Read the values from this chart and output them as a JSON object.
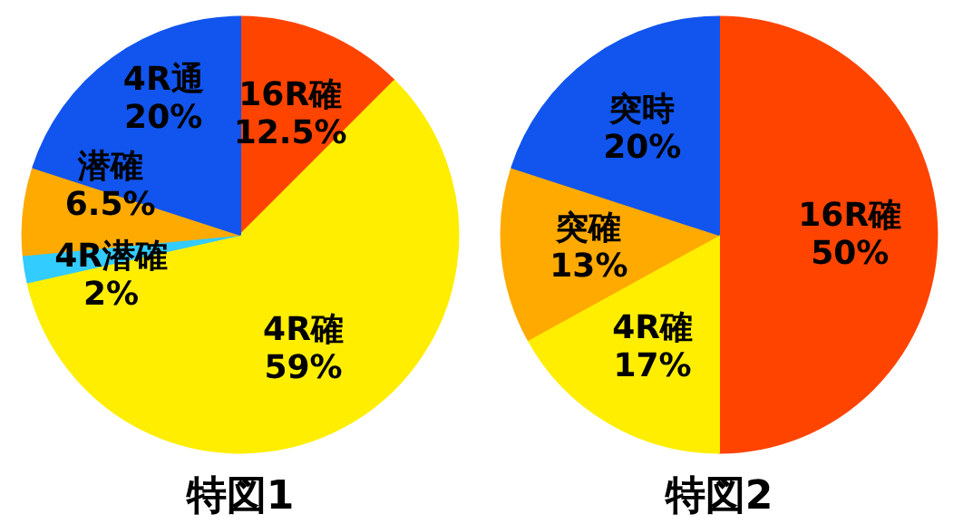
{
  "chart_data": [
    {
      "type": "pie",
      "title": "特図1",
      "categories": [
        "16R確",
        "4R確",
        "4R潜確",
        "潜確",
        "4R通"
      ],
      "values": [
        12.5,
        59,
        2,
        6.5,
        20
      ],
      "colors": [
        "#ff4400",
        "#ffee00",
        "#33ccff",
        "#ffaa00",
        "#1155ee"
      ],
      "value_labels": [
        "12.5%",
        "59%",
        "2%",
        "6.5%",
        "20%"
      ]
    },
    {
      "type": "pie",
      "title": "特図2",
      "categories": [
        "16R確",
        "4R確",
        "突確",
        "突時"
      ],
      "values": [
        50,
        17,
        13,
        20
      ],
      "colors": [
        "#ff4400",
        "#ffee00",
        "#ffaa00",
        "#1155ee"
      ],
      "value_labels": [
        "50%",
        "17%",
        "13%",
        "20%"
      ]
    }
  ]
}
